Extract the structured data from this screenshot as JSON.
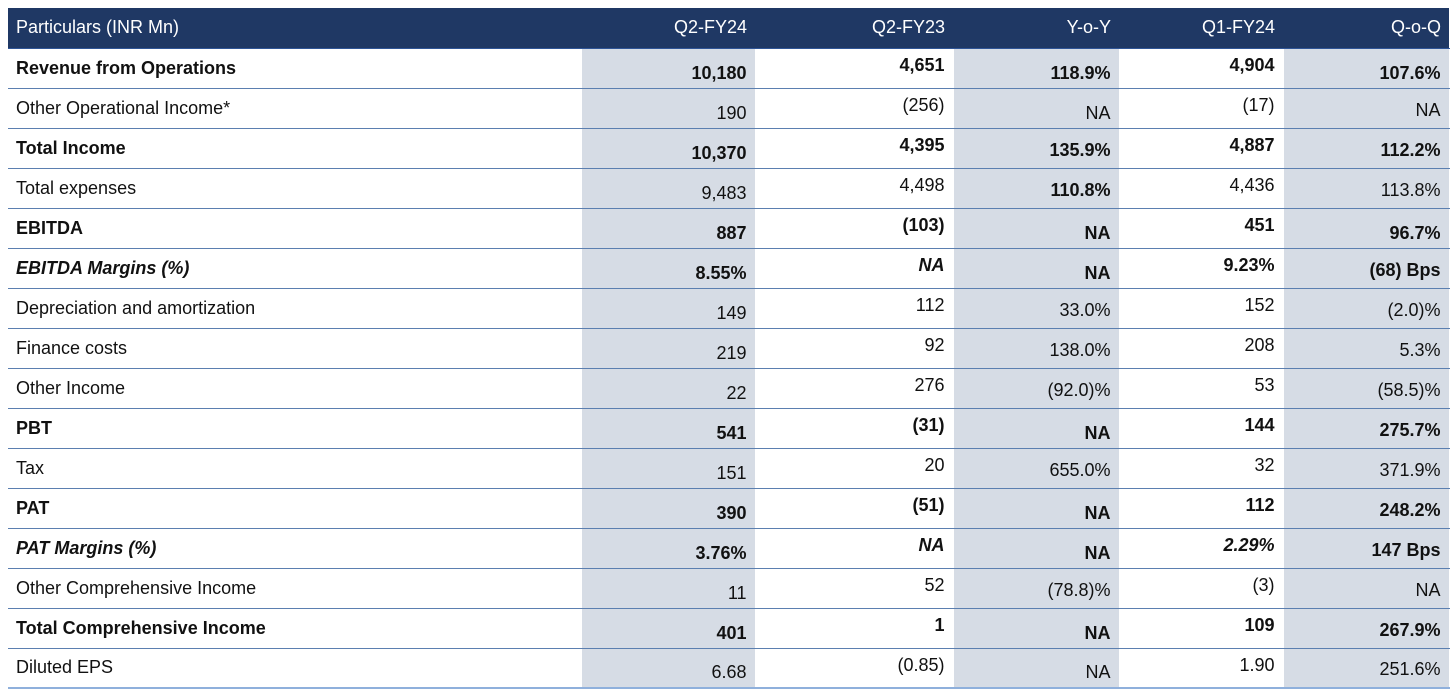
{
  "header": {
    "particulars": "Particulars (INR Mn)",
    "q2fy24": "Q2-FY24",
    "q2fy23": "Q2-FY23",
    "yoy": "Y-o-Y",
    "q1fy24": "Q1-FY24",
    "qoq": "Q-o-Q"
  },
  "rows": [
    {
      "label": "Revenue from Operations",
      "q2fy24": "10,180",
      "q2fy23": "4,651",
      "yoy": "118.9%",
      "q1fy24": "4,904",
      "qoq": "107.6%"
    },
    {
      "label": "Other Operational Income*",
      "q2fy24": "190",
      "q2fy23": "(256)",
      "yoy": "NA",
      "q1fy24": "(17)",
      "qoq": "NA"
    },
    {
      "label": "Total Income",
      "q2fy24": "10,370",
      "q2fy23": "4,395",
      "yoy": "135.9%",
      "q1fy24": "4,887",
      "qoq": "112.2%"
    },
    {
      "label": "Total expenses",
      "q2fy24": "9,483",
      "q2fy23": "4,498",
      "yoy": "110.8%",
      "q1fy24": "4,436",
      "qoq": "113.8%"
    },
    {
      "label": "EBITDA",
      "q2fy24": "887",
      "q2fy23": "(103)",
      "yoy": "NA",
      "q1fy24": "451",
      "qoq": "96.7%"
    },
    {
      "label": "EBITDA Margins (%)",
      "q2fy24": "8.55%",
      "q2fy23": "NA",
      "yoy": "NA",
      "q1fy24": "9.23%",
      "qoq": "(68) Bps"
    },
    {
      "label": "Depreciation and amortization",
      "q2fy24": "149",
      "q2fy23": "112",
      "yoy": "33.0%",
      "q1fy24": "152",
      "qoq": "(2.0)%"
    },
    {
      "label": "Finance costs",
      "q2fy24": "219",
      "q2fy23": "92",
      "yoy": "138.0%",
      "q1fy24": "208",
      "qoq": "5.3%"
    },
    {
      "label": "Other Income",
      "q2fy24": "22",
      "q2fy23": "276",
      "yoy": "(92.0)%",
      "q1fy24": "53",
      "qoq": "(58.5)%"
    },
    {
      "label": "PBT",
      "q2fy24": "541",
      "q2fy23": "(31)",
      "yoy": "NA",
      "q1fy24": "144",
      "qoq": "275.7%"
    },
    {
      "label": "Tax",
      "q2fy24": "151",
      "q2fy23": "20",
      "yoy": "655.0%",
      "q1fy24": "32",
      "qoq": "371.9%"
    },
    {
      "label": "PAT",
      "q2fy24": "390",
      "q2fy23": "(51)",
      "yoy": "NA",
      "q1fy24": "112",
      "qoq": "248.2%"
    },
    {
      "label": "PAT Margins (%)",
      "q2fy24": "3.76%",
      "q2fy23": "NA",
      "yoy": "NA",
      "q1fy24": "2.29%",
      "qoq": "147 Bps"
    },
    {
      "label": "Other Comprehensive Income",
      "q2fy24": "11",
      "q2fy23": "52",
      "yoy": "(78.8)%",
      "q1fy24": "(3)",
      "qoq": "NA"
    },
    {
      "label": "Total Comprehensive Income",
      "q2fy24": "401",
      "q2fy23": "1",
      "yoy": "NA",
      "q1fy24": "109",
      "qoq": "267.9%"
    },
    {
      "label": "Diluted EPS",
      "q2fy24": "6.68",
      "q2fy23": "(0.85)",
      "yoy": "NA",
      "q1fy24": "1.90",
      "qoq": "251.6%"
    }
  ],
  "colors": {
    "header_bg": "#1f3864",
    "shaded_column_bg": "#d6dce5",
    "row_border": "#5b7fb0"
  }
}
